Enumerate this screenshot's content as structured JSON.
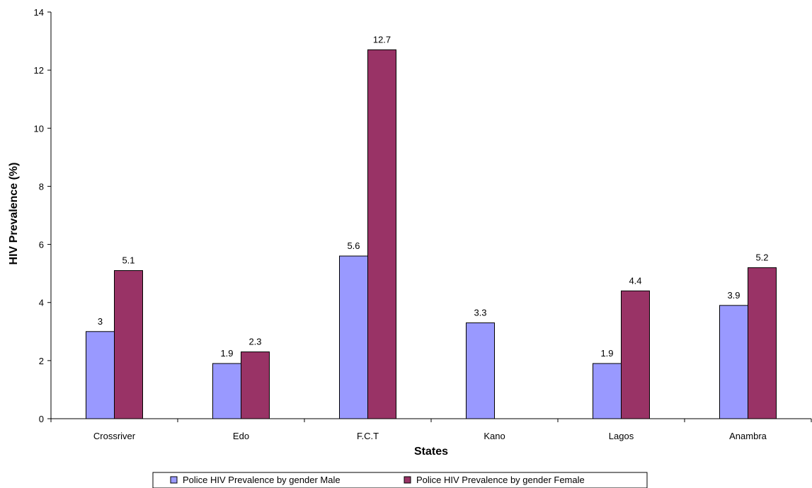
{
  "chart_data": {
    "type": "bar",
    "title": "",
    "xlabel": "States",
    "ylabel": "HIV Prevalence (%)",
    "categories": [
      "Crossriver",
      "Edo",
      "F.C.T",
      "Kano",
      "Lagos",
      "Anambra"
    ],
    "ylim": [
      0,
      14
    ],
    "yticks": [
      0,
      2,
      4,
      6,
      8,
      10,
      12,
      14
    ],
    "grid": false,
    "legend_position": "bottom",
    "series": [
      {
        "name": "Police HIV Prevalence by gender Male",
        "color": "#9999ff",
        "values": [
          3,
          1.9,
          5.6,
          3.3,
          1.9,
          3.9
        ],
        "labels": [
          "3",
          "1.9",
          "5.6",
          "3.3",
          "1.9",
          "3.9"
        ]
      },
      {
        "name": "Police HIV Prevalence by gender Female",
        "color": "#993366",
        "values": [
          5.1,
          2.3,
          12.7,
          null,
          4.4,
          5.2
        ],
        "labels": [
          "5.1",
          "2.3",
          "12.7",
          null,
          "4.4",
          "5.2"
        ]
      }
    ]
  }
}
